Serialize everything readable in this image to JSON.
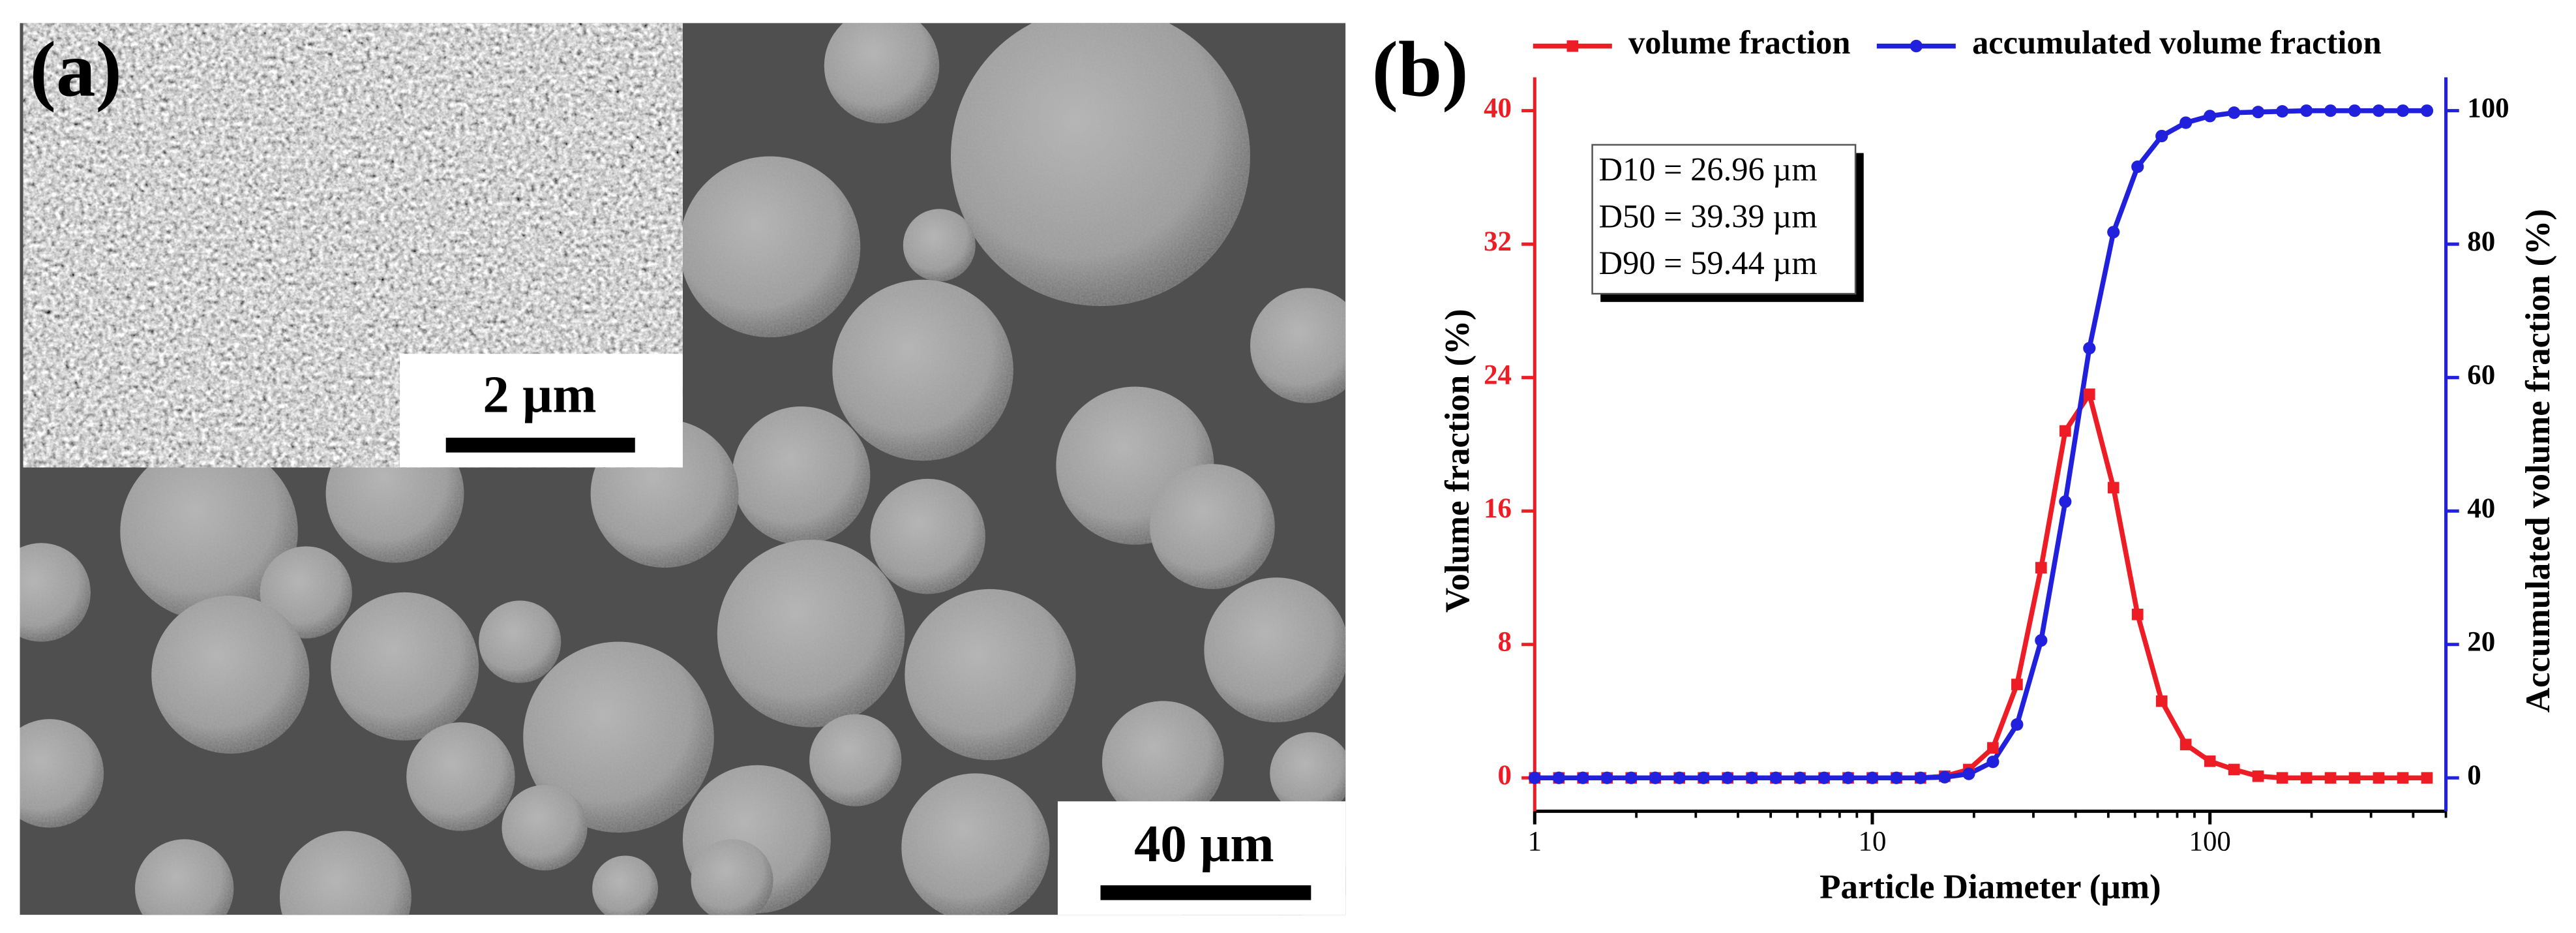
{
  "panel_a": {
    "label": "(a)",
    "inset_scale": "2 µm",
    "scale": "40 µm"
  },
  "chart_data": {
    "type": "line",
    "panel_label": "(b)",
    "x_label": "Particle Diameter (µm)",
    "y_label": "Volume fraction (%)",
    "y2_label": "Accumulated volume fraction (%)",
    "log_x": true,
    "legend": "top",
    "annotations": [
      "D10 = 26.96 µm",
      "D50 = 39.39 µm",
      "D90 = 59.44 µm"
    ],
    "xlim": [
      1,
      500
    ],
    "xticks": [
      1,
      10,
      100
    ],
    "ylim": [
      -2,
      42
    ],
    "yticks": [
      0,
      8,
      16,
      24,
      32,
      40
    ],
    "y2lim": [
      -5,
      105
    ],
    "y2ticks": [
      0,
      20,
      40,
      60,
      80,
      100
    ],
    "x": [
      1,
      1.179,
      1.389,
      1.638,
      1.931,
      2.276,
      2.683,
      3.162,
      3.728,
      4.394,
      5.179,
      6.105,
      7.197,
      8.483,
      10,
      11.79,
      13.89,
      16.38,
      19.31,
      22.76,
      26.83,
      31.62,
      37.28,
      43.94,
      51.79,
      61.05,
      71.97,
      84.83,
      100,
      117.9,
      138.9,
      163.8,
      193.1,
      227.6,
      268.3,
      316.2,
      372.8,
      439.4
    ],
    "series": [
      {
        "name": "volume fraction",
        "color": "#ee1c25",
        "axis": "y",
        "marker": "square",
        "values": [
          0,
          0,
          0,
          0,
          0,
          0,
          0,
          0,
          0,
          0,
          0,
          0,
          0,
          0,
          0,
          0,
          0,
          0.1,
          0.5,
          1.8,
          5.6,
          12.6,
          20.8,
          23.0,
          17.4,
          9.8,
          4.6,
          2.0,
          1.0,
          0.5,
          0.1,
          0,
          0,
          0,
          0,
          0,
          0,
          0
        ]
      },
      {
        "name": "accumulated volume fraction",
        "color": "#2121dd",
        "axis": "y2",
        "marker": "circle",
        "values": [
          0,
          0,
          0,
          0,
          0,
          0,
          0,
          0,
          0,
          0,
          0,
          0,
          0,
          0,
          0,
          0,
          0,
          0.1,
          0.6,
          2.4,
          8.0,
          20.6,
          41.4,
          64.4,
          81.8,
          91.6,
          96.2,
          98.2,
          99.2,
          99.7,
          99.8,
          99.9,
          100,
          100,
          100,
          100,
          100,
          100
        ]
      }
    ]
  }
}
